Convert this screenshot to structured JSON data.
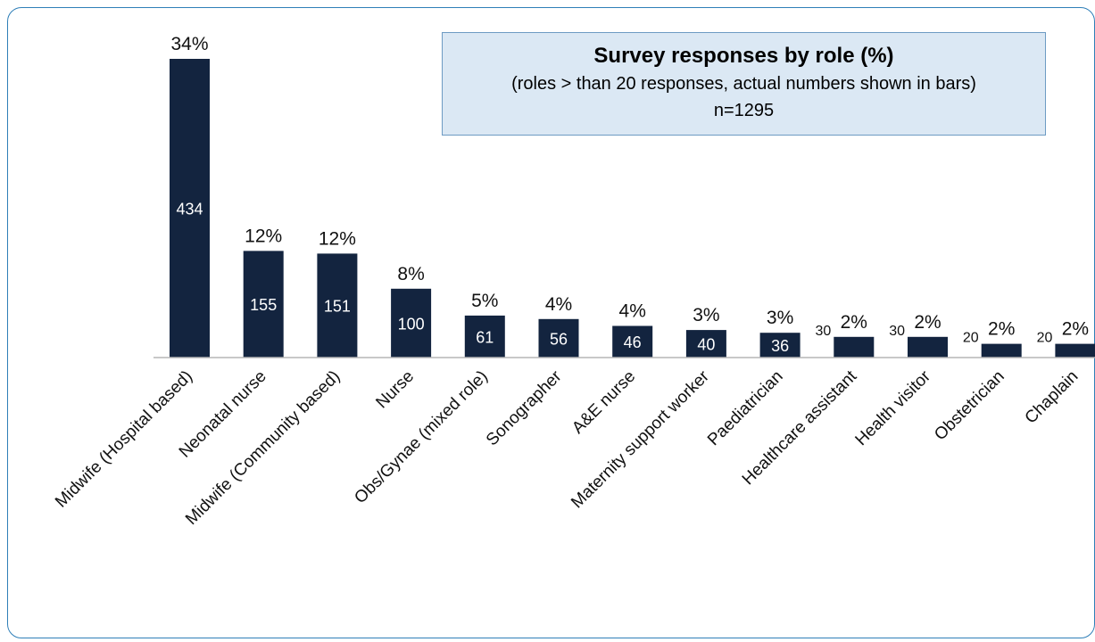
{
  "chart_data": {
    "type": "bar",
    "title": "Survey responses by role (%)",
    "subtitle": "(roles > than 20 responses, actual numbers shown in bars)",
    "note": "n=1295",
    "categories": [
      "Midwife (Hospital based)",
      "Neonatal nurse",
      "Midwife (Community based)",
      "Nurse",
      "Obs/Gynae (mixed role)",
      "Sonographer",
      "A&E nurse",
      "Maternity support worker",
      "Paediatrician",
      "Healthcare assistant",
      "Health visitor",
      "Obstetrician",
      "Chaplain"
    ],
    "values": [
      434,
      155,
      151,
      100,
      61,
      56,
      46,
      40,
      36,
      30,
      30,
      20,
      20
    ],
    "percent_labels": [
      "34%",
      "12%",
      "12%",
      "8%",
      "5%",
      "4%",
      "4%",
      "3%",
      "3%",
      "2%",
      "2%",
      "2%",
      "2%"
    ],
    "count_labels": [
      "434",
      "155",
      "151",
      "100",
      "61",
      "56",
      "46",
      "40",
      "36",
      "30",
      "30",
      "20",
      "20"
    ],
    "ylim": [
      0,
      434
    ],
    "grid": false,
    "legend": "none",
    "bar_color": "#13243f"
  }
}
